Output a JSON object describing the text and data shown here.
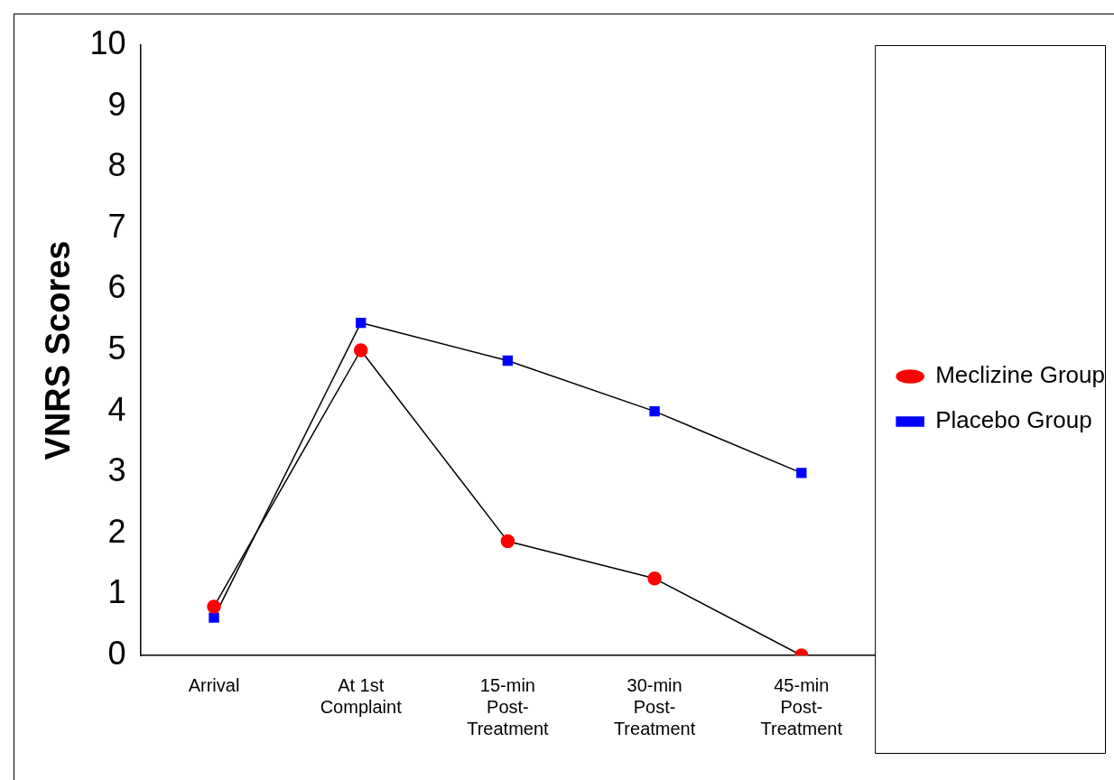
{
  "chart_data": {
    "type": "line",
    "ylabel": "VNRS Scores",
    "categories": [
      "Arrival",
      "At 1st Complaint",
      "15-min Post-Treatment",
      "30-min Post-Treatment",
      "45-min Post-Treatment"
    ],
    "series": [
      {
        "name": "Meclizine Group",
        "color": "#ff0000",
        "marker": "circle",
        "values": [
          0.8,
          5.0,
          1.87,
          1.26,
          0
        ]
      },
      {
        "name": "Placebo Group",
        "color": "#0000ff",
        "marker": "square",
        "values": [
          0.62,
          5.45,
          4.83,
          4.0,
          2.99
        ]
      }
    ],
    "ylim": [
      0,
      10
    ],
    "yticks": [
      0,
      1,
      2,
      3,
      4,
      5,
      6,
      7,
      8,
      9,
      10
    ],
    "grid": false,
    "legend": "right",
    "line_style": "solid"
  }
}
